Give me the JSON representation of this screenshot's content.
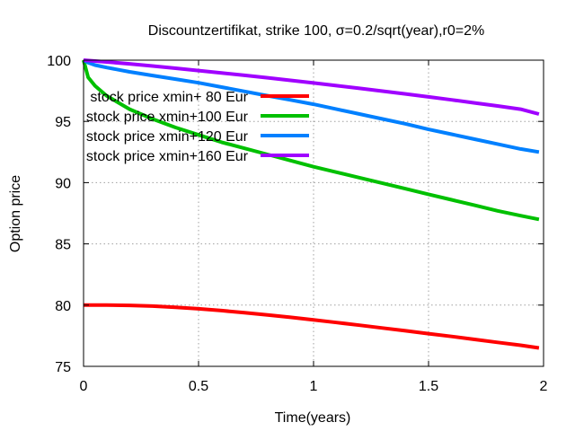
{
  "chart_data": {
    "type": "line",
    "title": "Discountzertifikat, strike 100, σ=0.2/sqrt(year),r0=2%",
    "xlabel": "Time(years)",
    "ylabel": "Option price",
    "xlim": [
      0,
      2
    ],
    "ylim": [
      75,
      100
    ],
    "xticks": [
      0,
      0.5,
      1,
      1.5,
      2
    ],
    "xtick_labels": [
      "0",
      "0.5",
      "1",
      "1.5",
      "2"
    ],
    "yticks": [
      75,
      80,
      85,
      90,
      95,
      100
    ],
    "ytick_labels": [
      "75",
      "80",
      "85",
      "90",
      "95",
      "100"
    ],
    "grid": true,
    "legend_position": "top-left",
    "series": [
      {
        "name": "stock price xmin+  80 Eur",
        "color": "#ff0000",
        "x": [
          0,
          0.1,
          0.2,
          0.3,
          0.4,
          0.5,
          0.6,
          0.7,
          0.8,
          0.9,
          1.0,
          1.1,
          1.2,
          1.3,
          1.4,
          1.5,
          1.6,
          1.7,
          1.8,
          1.9,
          1.98
        ],
        "y": [
          80.0,
          80.0,
          79.98,
          79.92,
          79.82,
          79.7,
          79.55,
          79.38,
          79.2,
          79.0,
          78.8,
          78.58,
          78.36,
          78.13,
          77.9,
          77.67,
          77.44,
          77.2,
          76.96,
          76.72,
          76.5
        ]
      },
      {
        "name": "stock price xmin+100 Eur",
        "color": "#00c000",
        "x": [
          0,
          0.02,
          0.05,
          0.1,
          0.2,
          0.3,
          0.4,
          0.5,
          0.6,
          0.7,
          0.8,
          0.9,
          1.0,
          1.1,
          1.2,
          1.3,
          1.4,
          1.5,
          1.6,
          1.7,
          1.8,
          1.9,
          1.98
        ],
        "y": [
          100.0,
          98.6,
          97.9,
          97.1,
          96.0,
          95.2,
          94.5,
          93.9,
          93.3,
          92.8,
          92.3,
          91.8,
          91.3,
          90.85,
          90.4,
          89.95,
          89.5,
          89.05,
          88.6,
          88.15,
          87.7,
          87.3,
          87.0
        ]
      },
      {
        "name": "stock price xmin+120 Eur",
        "color": "#0080ff",
        "x": [
          0,
          0.02,
          0.05,
          0.1,
          0.2,
          0.3,
          0.4,
          0.5,
          0.6,
          0.7,
          0.8,
          0.9,
          1.0,
          1.1,
          1.2,
          1.3,
          1.4,
          1.5,
          1.6,
          1.7,
          1.8,
          1.9,
          1.98
        ],
        "y": [
          100.0,
          99.8,
          99.6,
          99.4,
          99.05,
          98.75,
          98.45,
          98.15,
          97.8,
          97.45,
          97.1,
          96.75,
          96.4,
          96.0,
          95.6,
          95.2,
          94.8,
          94.35,
          93.95,
          93.55,
          93.15,
          92.75,
          92.5
        ]
      },
      {
        "name": "stock price xmin+160 Eur",
        "color": "#a000ff",
        "x": [
          0,
          0.1,
          0.2,
          0.3,
          0.4,
          0.5,
          0.6,
          0.7,
          0.8,
          0.9,
          1.0,
          1.1,
          1.2,
          1.3,
          1.4,
          1.5,
          1.6,
          1.7,
          1.8,
          1.9,
          1.98
        ],
        "y": [
          100.0,
          99.85,
          99.7,
          99.52,
          99.34,
          99.15,
          98.96,
          98.76,
          98.56,
          98.35,
          98.14,
          97.92,
          97.7,
          97.47,
          97.24,
          97.0,
          96.76,
          96.51,
          96.26,
          96.0,
          95.6
        ]
      }
    ]
  }
}
